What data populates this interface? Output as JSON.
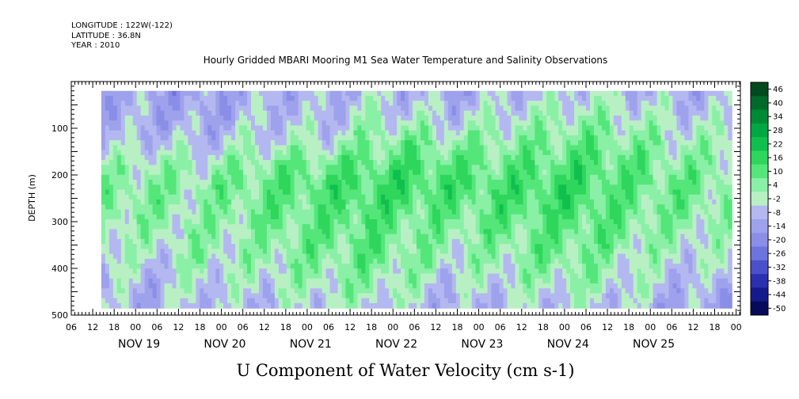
{
  "header": {
    "longitude": "LONGITUDE : 122W(-122)",
    "latitude": "LATITUDE : 36.8N",
    "year": "YEAR : 2010"
  },
  "chart_data": {
    "type": "heatmap",
    "title": "Hourly Gridded MBARI Mooring M1 Sea Water Temperature and Salinity Observations",
    "xlabel": "",
    "ylabel": "DEPTH (m)",
    "caption": "U Component of Water Velocity (cm s-1)",
    "y_axis": {
      "range": [
        0,
        500
      ],
      "ticks": [
        "100",
        "200",
        "300",
        "400",
        "500"
      ],
      "inverted": true
    },
    "x_axis": {
      "hour_ticks": [
        "06",
        "12",
        "18",
        "00"
      ],
      "dates": [
        "NOV 19",
        "NOV 20",
        "NOV 21",
        "NOV 22",
        "NOV 23",
        "NOV 24",
        "NOV 25"
      ],
      "range_days_from_nov19_00": [
        -0.75,
        7.05
      ],
      "data_range_days_from_nov19_00": [
        -0.4,
        6.95
      ]
    },
    "data_depth_range": [
      20,
      485
    ],
    "colorbar": {
      "levels": [
        "46",
        "40",
        "34",
        "28",
        "22",
        "16",
        "10",
        "4",
        "-2",
        "-8",
        "-14",
        "-20",
        "-26",
        "-32",
        "-38",
        "-44",
        "-50"
      ],
      "label_values": [
        46,
        40,
        34,
        28,
        22,
        16,
        10,
        4,
        -2,
        -8,
        -14,
        -20,
        -26,
        -32,
        -38,
        -44,
        -50
      ],
      "colors_top_to_bottom": [
        "#004a1e",
        "#006a2a",
        "#008a36",
        "#00a843",
        "#10c04e",
        "#2ed65c",
        "#55e67a",
        "#8af0a6",
        "#b8f0c4",
        "#b4b8f0",
        "#9ea2ec",
        "#8a8ee6",
        "#6e74de",
        "#4a50cc",
        "#2a30b0",
        "#141a8c",
        "#060a5a"
      ]
    },
    "profile_columns_u_cm_s": [
      {
        "day": -0.3,
        "u_by_depth": [
          -6,
          -8,
          -6,
          2,
          6,
          8,
          4,
          2,
          -4,
          -6
        ]
      },
      {
        "day": 0.2,
        "u_by_depth": [
          -10,
          -8,
          -4,
          4,
          8,
          6,
          2,
          -2,
          -6,
          -8
        ]
      },
      {
        "day": 0.7,
        "u_by_depth": [
          -12,
          -10,
          -6,
          2,
          6,
          4,
          6,
          4,
          0,
          -4
        ]
      },
      {
        "day": 1.2,
        "u_by_depth": [
          -8,
          -6,
          -2,
          6,
          10,
          8,
          4,
          2,
          -2,
          -6
        ]
      },
      {
        "day": 1.7,
        "u_by_depth": [
          -6,
          -4,
          0,
          8,
          12,
          10,
          8,
          6,
          2,
          -4
        ]
      },
      {
        "day": 2.2,
        "u_by_depth": [
          -8,
          -6,
          -2,
          10,
          14,
          12,
          10,
          8,
          4,
          -2
        ]
      },
      {
        "day": 2.7,
        "u_by_depth": [
          -4,
          2,
          6,
          12,
          16,
          14,
          12,
          10,
          6,
          0
        ]
      },
      {
        "day": 3.2,
        "u_by_depth": [
          -6,
          -2,
          8,
          14,
          16,
          12,
          8,
          6,
          2,
          -4
        ]
      },
      {
        "day": 3.7,
        "u_by_depth": [
          -8,
          -4,
          4,
          12,
          14,
          10,
          6,
          2,
          -4,
          -8
        ]
      },
      {
        "day": 4.2,
        "u_by_depth": [
          -6,
          0,
          6,
          10,
          14,
          12,
          8,
          4,
          0,
          -6
        ]
      },
      {
        "day": 4.7,
        "u_by_depth": [
          -4,
          2,
          8,
          12,
          16,
          14,
          10,
          8,
          2,
          -4
        ]
      },
      {
        "day": 5.2,
        "u_by_depth": [
          -2,
          4,
          10,
          14,
          16,
          14,
          12,
          8,
          4,
          -2
        ]
      },
      {
        "day": 5.7,
        "u_by_depth": [
          -4,
          2,
          8,
          12,
          12,
          10,
          8,
          4,
          0,
          -4
        ]
      },
      {
        "day": 6.2,
        "u_by_depth": [
          -6,
          -2,
          4,
          8,
          10,
          8,
          4,
          0,
          -4,
          -8
        ]
      },
      {
        "day": 6.7,
        "u_by_depth": [
          -8,
          -4,
          2,
          6,
          8,
          6,
          2,
          -2,
          -6,
          -10
        ]
      }
    ]
  }
}
